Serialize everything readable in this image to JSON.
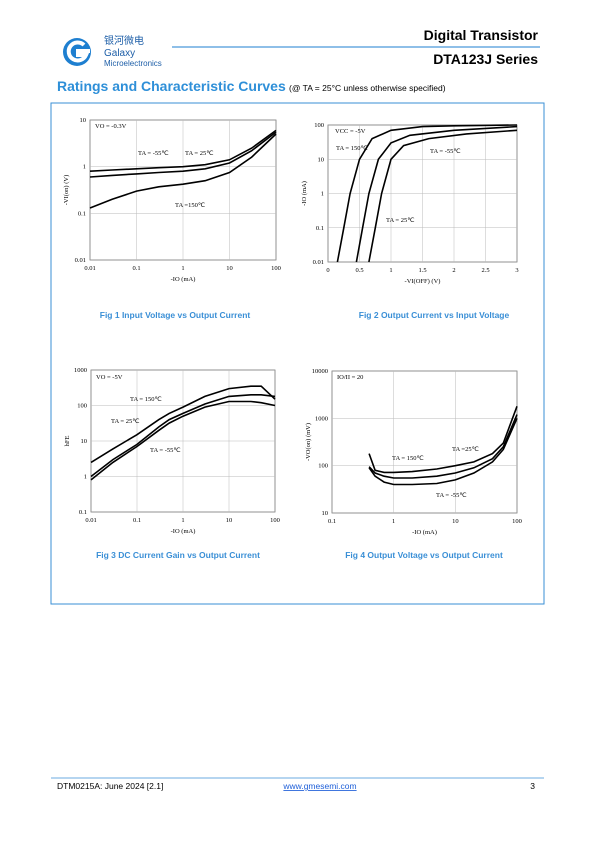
{
  "header": {
    "logo_cn": "银河微电",
    "logo_name": "Galaxy",
    "logo_sub": "Microelectronics",
    "title": "Digital Transistor",
    "series": "DTA123J Series"
  },
  "section": {
    "title": "Ratings and Characteristic Curves",
    "condition": "(@ TA = 25°C unless otherwise specified)"
  },
  "chart_data": [
    {
      "type": "line",
      "xscale": "log",
      "yscale": "log",
      "xlim": [
        0.01,
        100
      ],
      "ylim": [
        0.01,
        10
      ],
      "xticks": [
        0.01,
        0.1,
        1,
        10,
        100
      ],
      "yticks": [
        0.01,
        0.1,
        1,
        10
      ],
      "grid": true,
      "xlabel": "-IO (mA)",
      "ylabel": "-VI(on) (V)",
      "caption": "Fig 1   Input Voltage vs Output Current",
      "annotations": [
        "VO = -0.3V",
        "TA = -55℃",
        "TA = 25℃",
        "TA =150℃"
      ],
      "series": [
        {
          "color": "#000000",
          "x": [
            0.01,
            0.03,
            0.1,
            0.3,
            1,
            3,
            10,
            30,
            100
          ],
          "values": [
            0.8,
            0.85,
            0.9,
            0.95,
            1.0,
            1.1,
            1.4,
            2.5,
            6
          ]
        },
        {
          "color": "#000000",
          "x": [
            0.01,
            0.03,
            0.1,
            0.3,
            1,
            3,
            10,
            30,
            100
          ],
          "values": [
            0.6,
            0.65,
            0.7,
            0.75,
            0.8,
            0.9,
            1.2,
            2.2,
            5.5
          ]
        },
        {
          "color": "#000000",
          "x": [
            0.01,
            0.03,
            0.1,
            0.3,
            1,
            3,
            10,
            30,
            100
          ],
          "values": [
            0.13,
            0.2,
            0.3,
            0.37,
            0.42,
            0.5,
            0.75,
            1.6,
            5
          ]
        }
      ]
    },
    {
      "type": "line",
      "xscale": "linear",
      "yscale": "log",
      "xlim": [
        0,
        3
      ],
      "ylim": [
        0.01,
        100
      ],
      "xticks": [
        0,
        0.5,
        1,
        1.5,
        2,
        2.5,
        3
      ],
      "yticks": [
        0.01,
        0.1,
        1,
        10,
        100
      ],
      "grid": true,
      "xlabel": "-VI(OFF) (V)",
      "ylabel": "-IO (mA)",
      "caption": "Fig 2   Output Current vs Input Voltage",
      "annotations": [
        "VCC = -5V",
        "TA = 150℃",
        "TA = -55℃",
        "TA = 25℃"
      ],
      "series": [
        {
          "color": "#000000",
          "x": [
            0.15,
            0.25,
            0.35,
            0.5,
            0.7,
            1.0,
            1.5,
            2,
            3
          ],
          "values": [
            0.01,
            0.1,
            1,
            10,
            40,
            70,
            90,
            95,
            100
          ]
        },
        {
          "color": "#000000",
          "x": [
            0.45,
            0.55,
            0.65,
            0.8,
            1.0,
            1.3,
            2,
            3
          ],
          "values": [
            0.01,
            0.1,
            1,
            10,
            30,
            50,
            70,
            90
          ]
        },
        {
          "color": "#000000",
          "x": [
            0.65,
            0.75,
            0.85,
            1.0,
            1.2,
            1.6,
            2.2,
            3
          ],
          "values": [
            0.01,
            0.1,
            1,
            10,
            25,
            40,
            55,
            70
          ]
        }
      ]
    },
    {
      "type": "line",
      "xscale": "log",
      "yscale": "log",
      "xlim": [
        0.01,
        100
      ],
      "ylim": [
        0.1,
        1000
      ],
      "xticks": [
        0.01,
        0.1,
        1,
        10,
        100
      ],
      "yticks": [
        0.1,
        1,
        10,
        100,
        1000
      ],
      "grid": true,
      "xlabel": "-IO (mA)",
      "ylabel": "hFE",
      "caption": "Fig 3   DC Current Gain vs Output Current",
      "annotations": [
        "VO = -5V",
        "TA = 150℃",
        "TA = 25℃",
        "TA = -55℃"
      ],
      "series": [
        {
          "color": "#000000",
          "x": [
            0.01,
            0.03,
            0.1,
            0.3,
            0.5,
            1,
            3,
            10,
            30,
            50,
            100
          ],
          "values": [
            2.5,
            6,
            15,
            40,
            60,
            90,
            180,
            300,
            350,
            350,
            150
          ]
        },
        {
          "color": "#000000",
          "x": [
            0.01,
            0.03,
            0.1,
            0.3,
            0.5,
            1,
            3,
            10,
            30,
            50,
            100
          ],
          "values": [
            1,
            3,
            8,
            25,
            40,
            60,
            110,
            180,
            200,
            200,
            180
          ]
        },
        {
          "color": "#000000",
          "x": [
            0.01,
            0.03,
            0.1,
            0.3,
            0.5,
            1,
            3,
            10,
            30,
            50,
            100
          ],
          "values": [
            0.8,
            2.5,
            7,
            20,
            32,
            50,
            90,
            130,
            130,
            120,
            100
          ]
        }
      ]
    },
    {
      "type": "line",
      "xscale": "log",
      "yscale": "log",
      "xlim": [
        0.1,
        100
      ],
      "ylim": [
        10,
        10000
      ],
      "xticks": [
        0.1,
        1,
        10,
        100
      ],
      "yticks": [
        10,
        100,
        1000,
        10000
      ],
      "grid": true,
      "xlabel": "-IO (mA)",
      "ylabel": "-VO(on) (mV)",
      "caption": "Fig 4   Output Voltage vs Output Current",
      "annotations": [
        "IO/II = 20",
        "TA = 150℃",
        "TA =25℃",
        "TA = -55℃"
      ],
      "series": [
        {
          "color": "#000000",
          "x": [
            0.4,
            0.5,
            0.7,
            1,
            2,
            5,
            10,
            20,
            40,
            60,
            100
          ],
          "values": [
            180,
            80,
            72,
            72,
            75,
            85,
            100,
            120,
            180,
            300,
            1800
          ]
        },
        {
          "color": "#000000",
          "x": [
            0.4,
            0.5,
            0.7,
            1,
            2,
            5,
            10,
            20,
            40,
            60,
            100
          ],
          "values": [
            95,
            70,
            60,
            55,
            55,
            60,
            70,
            90,
            140,
            250,
            1200
          ]
        },
        {
          "color": "#000000",
          "x": [
            0.4,
            0.5,
            0.7,
            1,
            2,
            5,
            10,
            20,
            40,
            60,
            100
          ],
          "values": [
            90,
            60,
            45,
            40,
            40,
            42,
            50,
            70,
            120,
            220,
            1000
          ]
        }
      ]
    }
  ],
  "footer": {
    "doc": "DTM0215A: June 2024 [2.1]",
    "url": "www.gmesemi.com",
    "page": "3"
  }
}
